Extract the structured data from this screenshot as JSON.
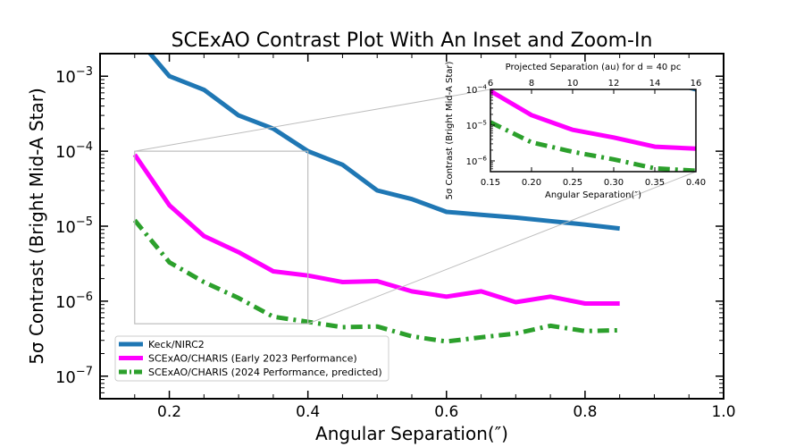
{
  "chart_data": [
    {
      "type": "line",
      "title": "SCExAO Contrast Plot With An Inset and Zoom-In",
      "xlabel": "Angular Separation(″)",
      "ylabel": "5σ Contrast (Bright Mid-A Star)",
      "xlim": [
        0.1,
        1.0
      ],
      "ylim": [
        5e-08,
        0.002
      ],
      "yscale": "log",
      "x_ticks": [
        0.2,
        0.4,
        0.6,
        0.8,
        1.0
      ],
      "x_tick_labels": [
        "0.2",
        "0.4",
        "0.6",
        "0.8",
        "1.0"
      ],
      "y_ticks": [
        1e-07,
        1e-06,
        1e-05,
        0.0001,
        0.001
      ],
      "y_tick_labels": [
        [
          "10",
          "−7"
        ],
        [
          "10",
          "−6"
        ],
        [
          "10",
          "−5"
        ],
        [
          "10",
          "−4"
        ],
        [
          "10",
          "−3"
        ]
      ],
      "legend_position": "lower-left",
      "series": [
        {
          "name": "Keck/NIRC2",
          "color": "#1f77b4",
          "style": "solid",
          "x": [
            0.15,
            0.2,
            0.25,
            0.3,
            0.35,
            0.4,
            0.45,
            0.5,
            0.55,
            0.6,
            0.65,
            0.7,
            0.75,
            0.8,
            0.85
          ],
          "y": [
            0.0035,
            0.001,
            0.00066,
            0.0003,
            0.0002,
            0.0001,
            6.6e-05,
            3e-05,
            2.3e-05,
            1.55e-05,
            1.42e-05,
            1.3e-05,
            1.17e-05,
            1.05e-05,
            9.3e-06
          ]
        },
        {
          "name": "SCExAO/CHARIS (Early 2023 Performance)",
          "color": "#ff00ff",
          "style": "solid",
          "x": [
            0.15,
            0.2,
            0.25,
            0.3,
            0.35,
            0.4,
            0.45,
            0.5,
            0.55,
            0.6,
            0.65,
            0.7,
            0.75,
            0.8,
            0.85
          ],
          "y": [
            9e-05,
            1.9e-05,
            7.4e-06,
            4.5e-06,
            2.5e-06,
            2.2e-06,
            1.8e-06,
            1.85e-06,
            1.35e-06,
            1.15e-06,
            1.35e-06,
            9.7e-07,
            1.15e-06,
            9.3e-07,
            9.3e-07
          ]
        },
        {
          "name": "SCExAO/CHARIS (2024 Performance, predicted)",
          "color": "#2ca02c",
          "style": "dashdot",
          "x": [
            0.15,
            0.2,
            0.25,
            0.3,
            0.35,
            0.4,
            0.45,
            0.5,
            0.55,
            0.6,
            0.65,
            0.7,
            0.75,
            0.8,
            0.85
          ],
          "y": [
            1.2e-05,
            3.3e-06,
            1.8e-06,
            1.1e-06,
            6.2e-07,
            5.3e-07,
            4.5e-07,
            4.6e-07,
            3.4e-07,
            2.9e-07,
            3.3e-07,
            3.7e-07,
            4.7e-07,
            4e-07,
            4.1e-07
          ]
        }
      ],
      "zoom_box": {
        "xlim": [
          0.15,
          0.4
        ],
        "ylim": [
          5e-07,
          0.0001
        ]
      }
    },
    {
      "type": "line",
      "title": "",
      "xlabel": "Angular Separation(″)",
      "ylabel": "5σ Contrast (Bright Mid-A Star)",
      "top_xlabel": "Projected Separation (au) for d = 40 pc",
      "xlim": [
        0.15,
        0.4
      ],
      "ylim": [
        5e-07,
        0.0001
      ],
      "yscale": "log",
      "x_ticks": [
        0.15,
        0.2,
        0.25,
        0.3,
        0.35,
        0.4
      ],
      "x_tick_labels": [
        "0.15",
        "0.20",
        "0.25",
        "0.30",
        "0.35",
        "0.40"
      ],
      "top_ticks_au": [
        6,
        8,
        10,
        12,
        14,
        16
      ],
      "top_tick_labels": [
        "6",
        "8",
        "10",
        "12",
        "14",
        "16"
      ],
      "y_ticks": [
        1e-06,
        1e-05,
        0.0001
      ],
      "y_tick_labels": [
        [
          "10",
          "−6"
        ],
        [
          "10",
          "−5"
        ],
        [
          "10",
          "−4"
        ]
      ],
      "series_ref": "same as main chart series"
    }
  ]
}
